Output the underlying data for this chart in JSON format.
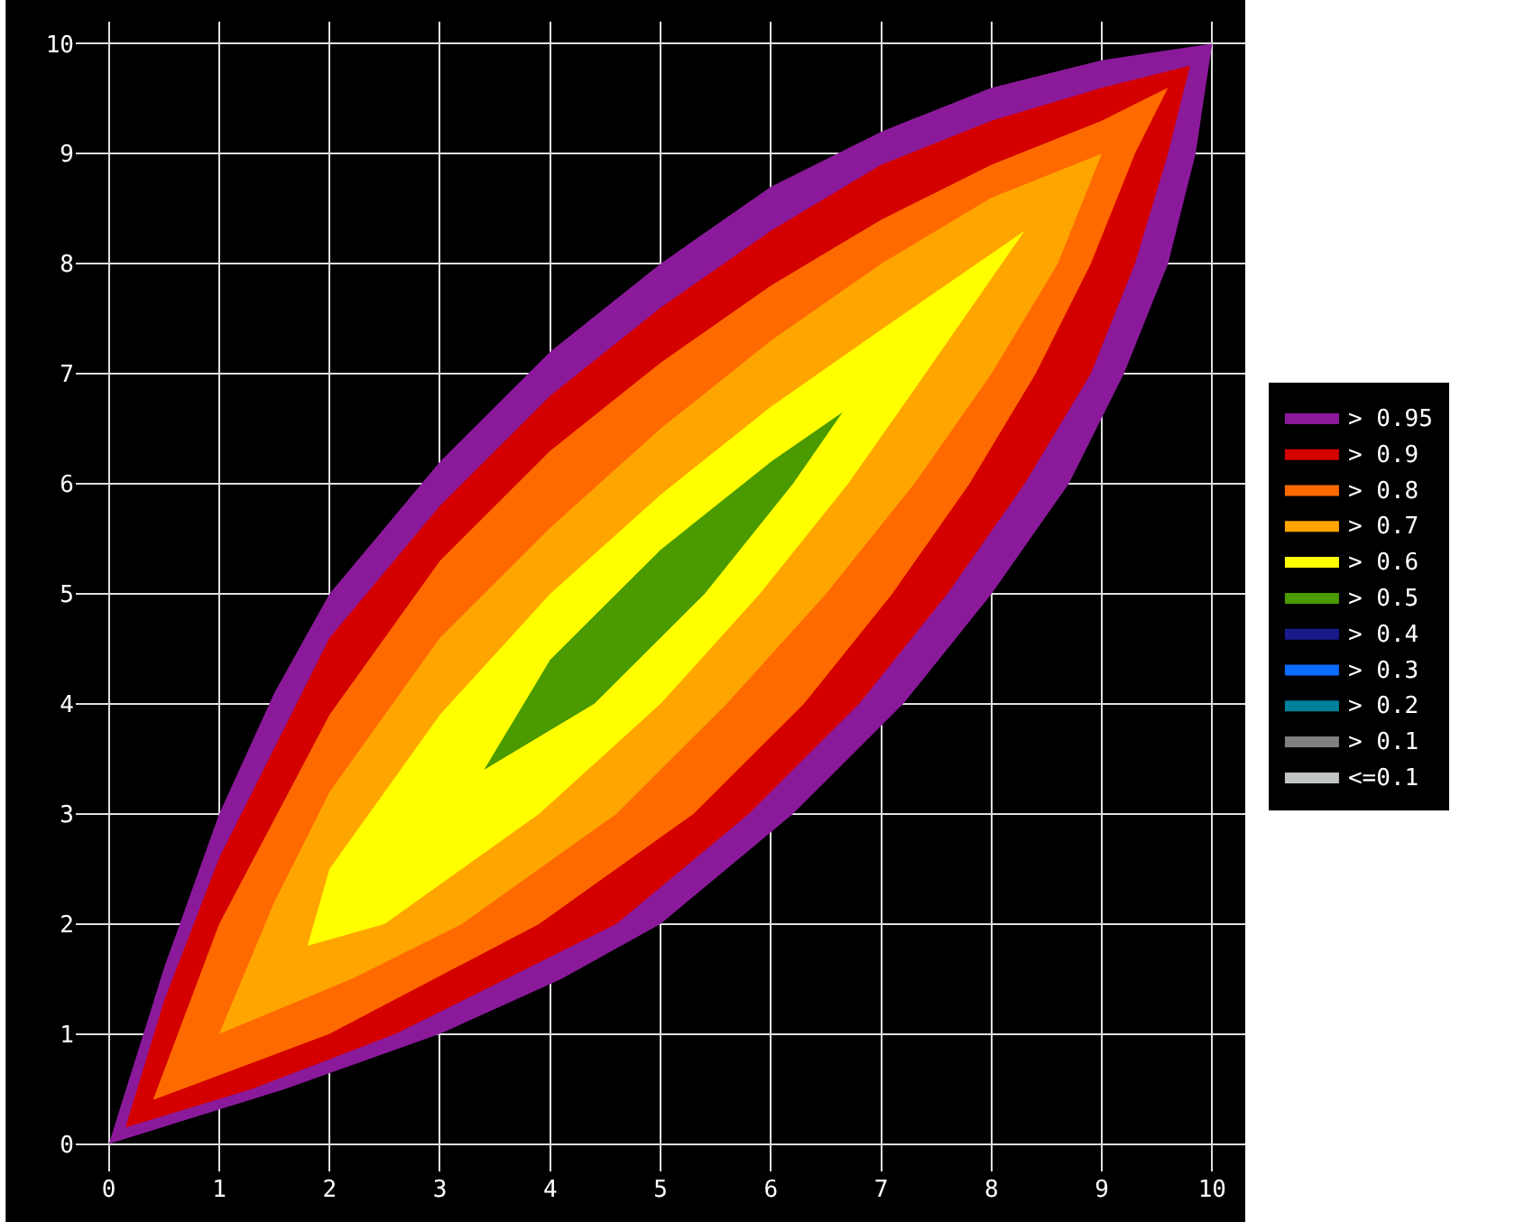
{
  "chart_data": {
    "type": "area",
    "xlim": [
      -0.3,
      10.3
    ],
    "ylim": [
      -0.25,
      10.2
    ],
    "xticks": [
      0,
      1,
      2,
      3,
      4,
      5,
      6,
      7,
      8,
      9,
      10
    ],
    "yticks": [
      0,
      1,
      2,
      3,
      4,
      5,
      6,
      7,
      8,
      9,
      10
    ],
    "grid": true,
    "legend": "right",
    "marker": "none",
    "series": [
      {
        "name": "> 0.95",
        "color": "#8b1a9b",
        "x": [
          0,
          0.5,
          1,
          1.5,
          2,
          3,
          4,
          5,
          6,
          7,
          8,
          9,
          10,
          9.85,
          9.6,
          9.2,
          8.7,
          8,
          7.2,
          6.2,
          5,
          4.1,
          3,
          1.6,
          0
        ],
        "values": [
          0,
          1.6,
          3,
          4.1,
          5,
          6.2,
          7.2,
          8,
          8.7,
          9.2,
          9.6,
          9.85,
          10,
          9,
          8,
          7,
          6,
          5,
          4,
          3,
          2,
          1.5,
          1,
          0.5,
          0
        ]
      },
      {
        "name": "> 0.9",
        "color": "#d40000",
        "x": [
          0.15,
          0.5,
          1,
          2,
          3,
          4,
          5,
          6,
          7,
          8,
          9,
          9.8,
          9.6,
          9.3,
          8.9,
          8.3,
          7.6,
          6.8,
          5.8,
          4.6,
          2.6,
          1.3,
          0.15
        ],
        "values": [
          0.15,
          1.3,
          2.6,
          4.6,
          5.8,
          6.8,
          7.6,
          8.3,
          8.9,
          9.3,
          9.6,
          9.8,
          9,
          8,
          7,
          6,
          5,
          4,
          3,
          2,
          1,
          0.5,
          0.15
        ]
      },
      {
        "name": "> 0.8",
        "color": "#ff6a00",
        "x": [
          0.4,
          1,
          2,
          3,
          4,
          5,
          6,
          7,
          8,
          9,
          9.6,
          9.3,
          8.9,
          8.4,
          7.8,
          7.1,
          6.3,
          5.3,
          3.9,
          2,
          0.4
        ],
        "values": [
          0.4,
          2,
          3.9,
          5.3,
          6.3,
          7.1,
          7.8,
          8.4,
          8.9,
          9.3,
          9.6,
          9,
          8,
          7,
          6,
          5,
          4,
          3,
          2,
          1,
          0.4
        ]
      },
      {
        "name": "> 0.7",
        "color": "#ffa500",
        "x": [
          1,
          1.5,
          2,
          3,
          4,
          5,
          6,
          7,
          8,
          9,
          8.6,
          8,
          7.3,
          6.5,
          5.6,
          4.6,
          3.2,
          2.2,
          1
        ],
        "values": [
          1,
          2.2,
          3.2,
          4.6,
          5.6,
          6.5,
          7.3,
          8,
          8.6,
          9,
          8,
          7,
          6,
          5,
          4,
          3,
          2,
          1.5,
          1
        ]
      },
      {
        "name": "> 0.6",
        "color": "#ffff00",
        "x": [
          1.8,
          2,
          3,
          4,
          5,
          6,
          7,
          8.3,
          7.4,
          6.7,
          5.9,
          5,
          3.9,
          2.5,
          1.8
        ],
        "values": [
          1.8,
          2.5,
          3.9,
          5,
          5.9,
          6.7,
          7.4,
          8.3,
          7,
          6,
          5,
          4,
          3,
          2,
          1.8
        ]
      },
      {
        "name": "> 0.5",
        "color": "#4a9a00",
        "x": [
          3.4,
          4,
          5,
          6,
          6.65,
          6.2,
          5.4,
          4.4,
          3.4
        ],
        "values": [
          3.4,
          4.4,
          5.4,
          6.2,
          6.65,
          6,
          5,
          4,
          3.4
        ]
      },
      {
        "name": "> 0.4",
        "color": "#1a1a8c"
      },
      {
        "name": "> 0.3",
        "color": "#0a6cff"
      },
      {
        "name": "> 0.2",
        "color": "#00809a"
      },
      {
        "name": "> 0.1",
        "color": "#808080"
      },
      {
        "name": "<=0.1",
        "color": "#c0c4c0"
      }
    ]
  }
}
